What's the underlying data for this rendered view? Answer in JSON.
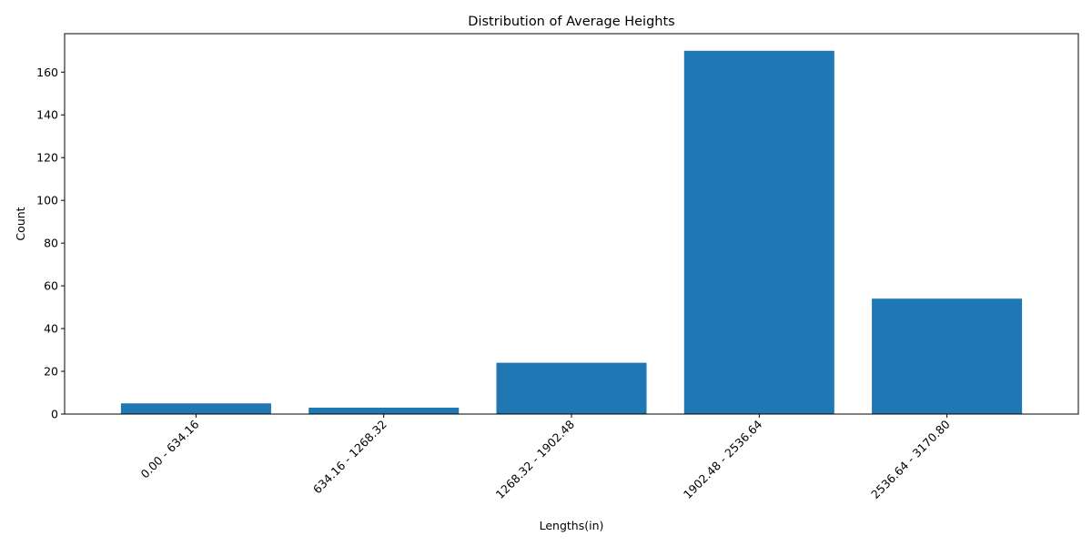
{
  "chart_data": {
    "type": "bar",
    "title": "Distribution of Average Heights",
    "xlabel": "Lengths(in)",
    "ylabel": "Count",
    "categories": [
      "0.00 - 634.16",
      "634.16 - 1268.32",
      "1268.32 - 1902.48",
      "1902.48 - 2536.64",
      "2536.64 - 3170.80"
    ],
    "values": [
      5,
      3,
      24,
      170,
      54
    ],
    "ylim": [
      0,
      178
    ],
    "yticks": [
      0,
      20,
      40,
      60,
      80,
      100,
      120,
      140,
      160
    ],
    "xtick_rotation": 45,
    "grid": false,
    "legend": "none",
    "bar_color": "#1f77b4"
  }
}
